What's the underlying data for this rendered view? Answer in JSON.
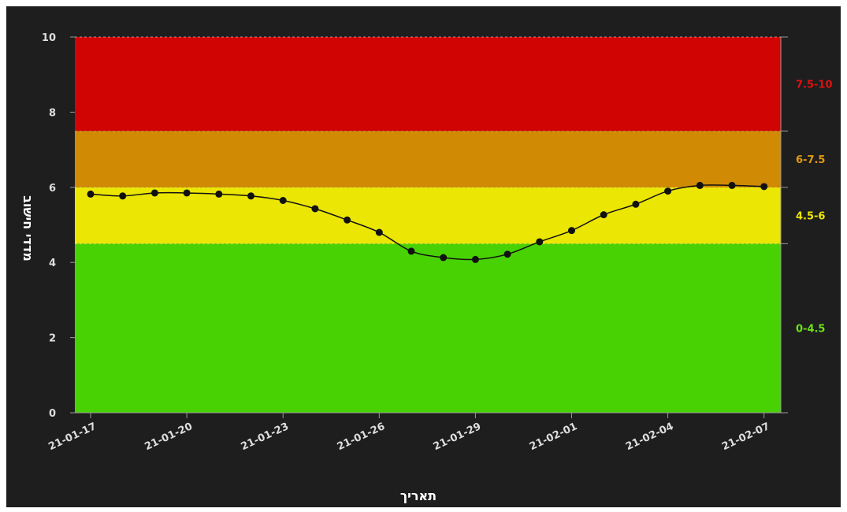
{
  "chart_data": {
    "type": "line",
    "xlabel": "תאריך",
    "ylabel": "מדדי חישוב",
    "ylim": [
      0,
      10
    ],
    "y_ticks": [
      "0",
      "2",
      "4",
      "6",
      "8",
      "10"
    ],
    "x_tick_labels": [
      "21-01-17",
      "21-01-20",
      "21-01-23",
      "21-01-26",
      "21-01-29",
      "21-02-01",
      "21-02-04",
      "21-02-07"
    ],
    "x": [
      "21-01-17",
      "21-01-18",
      "21-01-19",
      "21-01-20",
      "21-01-21",
      "21-01-22",
      "21-01-23",
      "21-01-24",
      "21-01-25",
      "21-01-26",
      "21-01-27",
      "21-01-28",
      "21-01-29",
      "21-01-30",
      "21-01-31",
      "21-02-01",
      "21-02-02",
      "21-02-03",
      "21-02-04",
      "21-02-05",
      "21-02-06",
      "21-02-07"
    ],
    "series": [
      {
        "values": [
          5.82,
          5.77,
          5.85,
          5.85,
          5.82,
          5.77,
          5.65,
          5.43,
          5.13,
          4.8,
          4.3,
          4.13,
          4.08,
          4.22,
          4.55,
          4.85,
          5.27,
          5.55,
          5.9,
          6.05,
          6.05,
          6.02
        ],
        "color": "#111111"
      }
    ],
    "bands": [
      {
        "label": "0-4.5",
        "from": 0,
        "to": 4.5,
        "color": "#48d204",
        "label_color": "#6ee017"
      },
      {
        "label": "4.5-6",
        "from": 4.5,
        "to": 6,
        "color": "#ebe603",
        "label_color": "#ebe603"
      },
      {
        "label": "6-7.5",
        "from": 6,
        "to": 7.5,
        "color": "#d18a04",
        "label_color": "#e29a10"
      },
      {
        "label": "7.5-10",
        "from": 7.5,
        "to": 10,
        "color": "#d10404",
        "label_color": "#e01010"
      }
    ],
    "grid": false,
    "legend": "none"
  }
}
